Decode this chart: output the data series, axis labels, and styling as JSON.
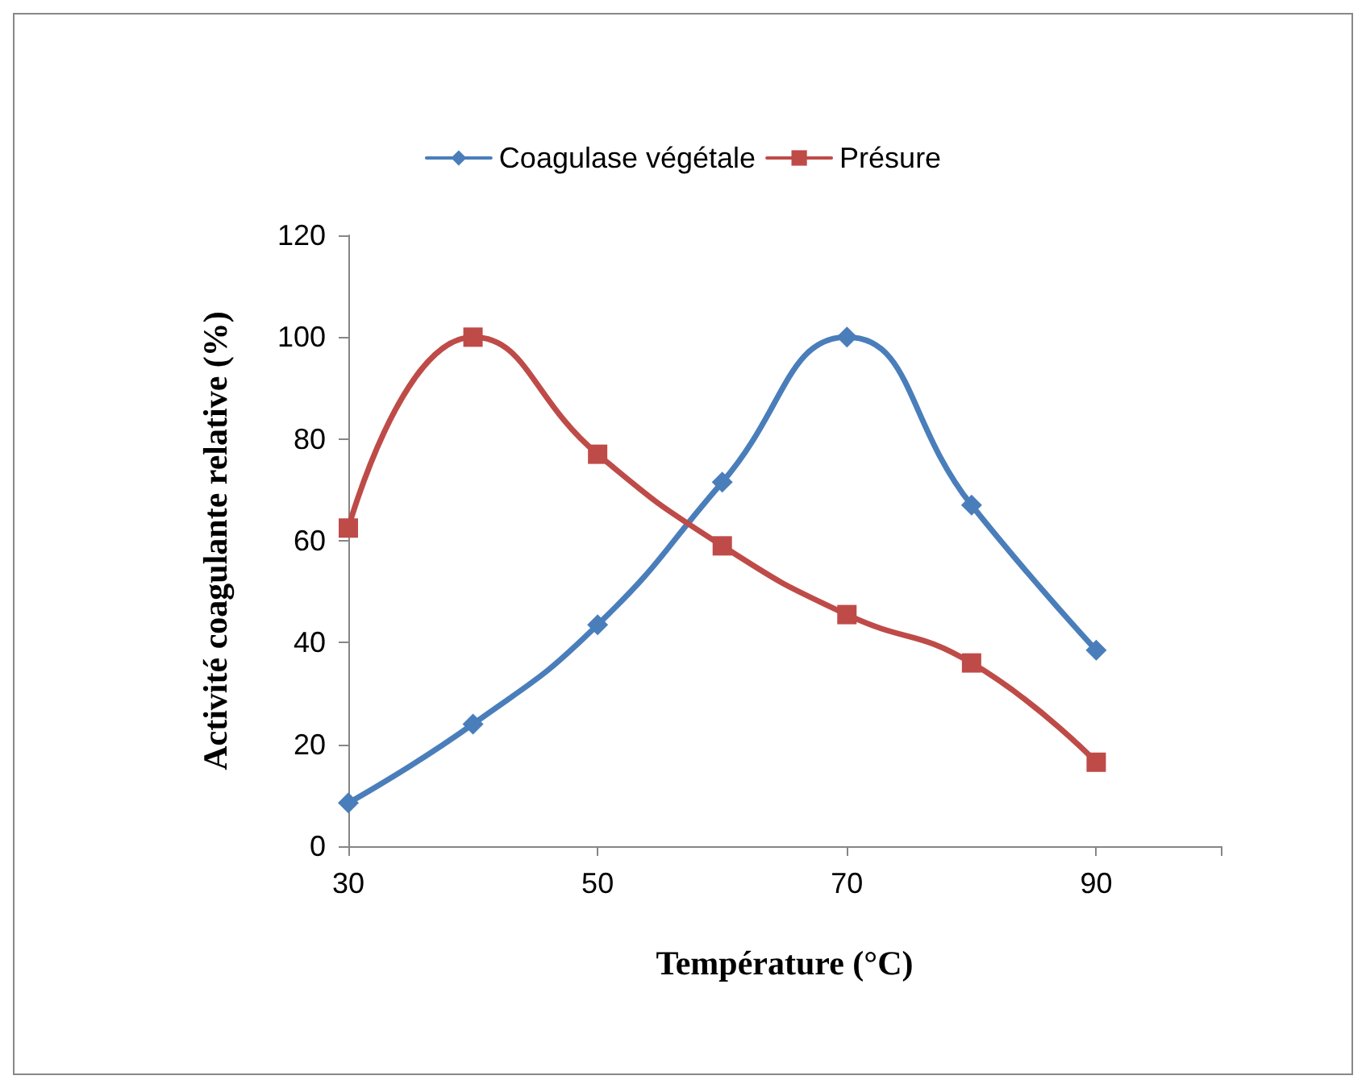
{
  "chart_data": {
    "type": "line",
    "xlabel": "Température (°C)",
    "ylabel": "Activité coagulante relative (%)",
    "x": [
      30,
      40,
      50,
      60,
      70,
      80,
      90
    ],
    "series": [
      {
        "name": "Coagulase végétale",
        "color": "#4a7ebb",
        "marker": "diamond",
        "values": [
          8.5,
          24,
          43.5,
          71.5,
          100,
          67,
          38.5
        ]
      },
      {
        "name": "Présure",
        "color": "#be4b48",
        "marker": "square",
        "values": [
          62.5,
          100,
          77,
          59,
          45.5,
          36,
          16.5
        ]
      }
    ],
    "xlim": [
      30,
      100
    ],
    "xticks": [
      30,
      50,
      70,
      90
    ],
    "ylim": [
      0,
      120
    ],
    "yticks": [
      0,
      20,
      40,
      60,
      80,
      100,
      120
    ],
    "grid": false,
    "legend": "top",
    "line_style": "solid"
  }
}
